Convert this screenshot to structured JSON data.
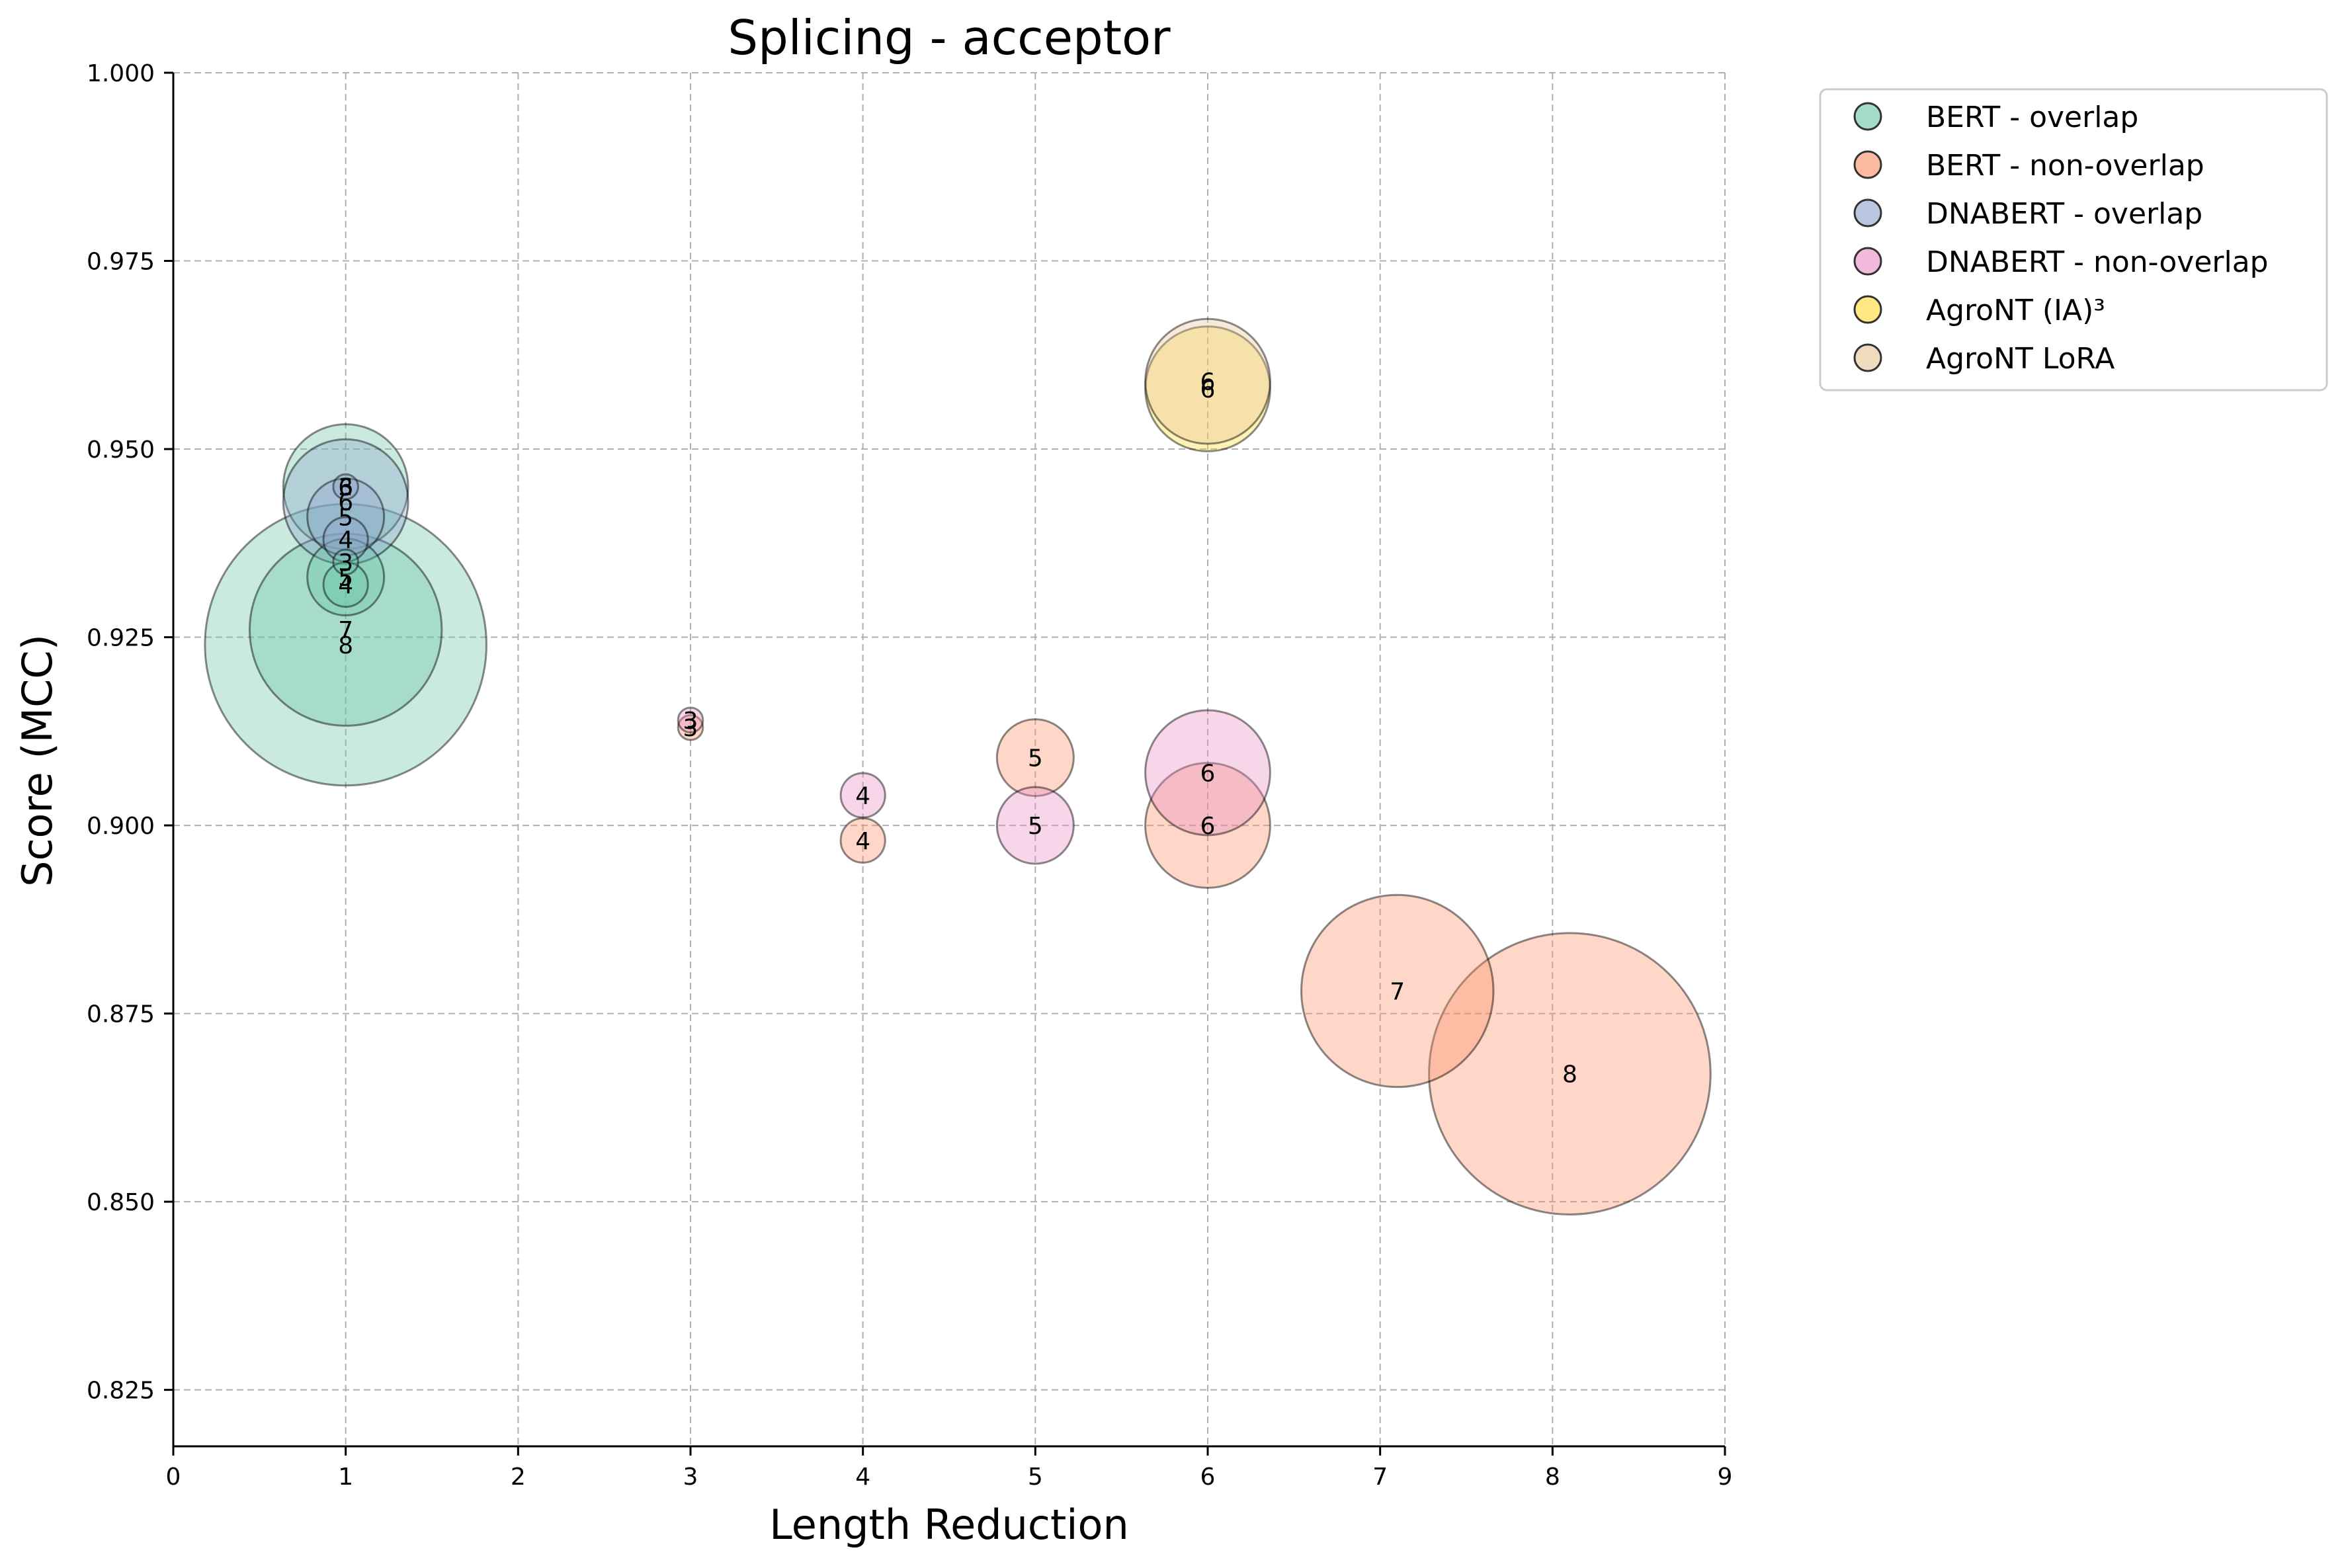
{
  "chart_data": {
    "type": "scatter",
    "title": "Splicing - acceptor",
    "xlabel": "Length Reduction",
    "ylabel": "Score (MCC)",
    "xlim": [
      0,
      9
    ],
    "ylim": [
      0.8175,
      1.0
    ],
    "xticks": [
      "0",
      "1",
      "2",
      "3",
      "4",
      "5",
      "6",
      "7",
      "8",
      "9"
    ],
    "yticks": [
      "0.825",
      "0.850",
      "0.875",
      "0.900",
      "0.925",
      "0.950",
      "0.975",
      "1.000"
    ],
    "grid": true,
    "legend_position": "outside-top-right",
    "series": [
      {
        "name": "BERT - overlap",
        "color": "#66c2a5",
        "points": [
          {
            "x": 1.0,
            "y": 0.924,
            "label": "8"
          },
          {
            "x": 1.0,
            "y": 0.926,
            "label": "7"
          },
          {
            "x": 1.0,
            "y": 0.945,
            "label": "6"
          },
          {
            "x": 1.0,
            "y": 0.933,
            "label": "5"
          },
          {
            "x": 1.0,
            "y": 0.932,
            "label": "4"
          },
          {
            "x": 1.0,
            "y": 0.935,
            "label": "3"
          }
        ]
      },
      {
        "name": "BERT - non-overlap",
        "color": "#fc8d62",
        "points": [
          {
            "x": 8.1,
            "y": 0.867,
            "label": "8"
          },
          {
            "x": 7.1,
            "y": 0.878,
            "label": "7"
          },
          {
            "x": 6.0,
            "y": 0.9,
            "label": "6"
          },
          {
            "x": 5.0,
            "y": 0.909,
            "label": "5"
          },
          {
            "x": 4.0,
            "y": 0.898,
            "label": "4"
          },
          {
            "x": 3.0,
            "y": 0.913,
            "label": "3"
          }
        ]
      },
      {
        "name": "DNABERT - overlap",
        "color": "#8da0cb",
        "points": [
          {
            "x": 1.0,
            "y": 0.943,
            "label": "6"
          },
          {
            "x": 1.0,
            "y": 0.941,
            "label": "5"
          },
          {
            "x": 1.0,
            "y": 0.938,
            "label": "4"
          },
          {
            "x": 1.0,
            "y": 0.945,
            "label": "3"
          }
        ]
      },
      {
        "name": "DNABERT - non-overlap",
        "color": "#e78ac3",
        "points": [
          {
            "x": 6.0,
            "y": 0.907,
            "label": "6"
          },
          {
            "x": 5.0,
            "y": 0.9,
            "label": "5"
          },
          {
            "x": 4.0,
            "y": 0.904,
            "label": "4"
          },
          {
            "x": 3.0,
            "y": 0.914,
            "label": "3"
          }
        ]
      },
      {
        "name": "AgroNT (IA)³",
        "color": "#ffd92f",
        "points": [
          {
            "x": 6.0,
            "y": 0.958,
            "label": "6"
          }
        ]
      },
      {
        "name": "AgroNT LoRA",
        "color": "#e5c494",
        "points": [
          {
            "x": 6.0,
            "y": 0.959,
            "label": "6"
          }
        ]
      }
    ]
  }
}
